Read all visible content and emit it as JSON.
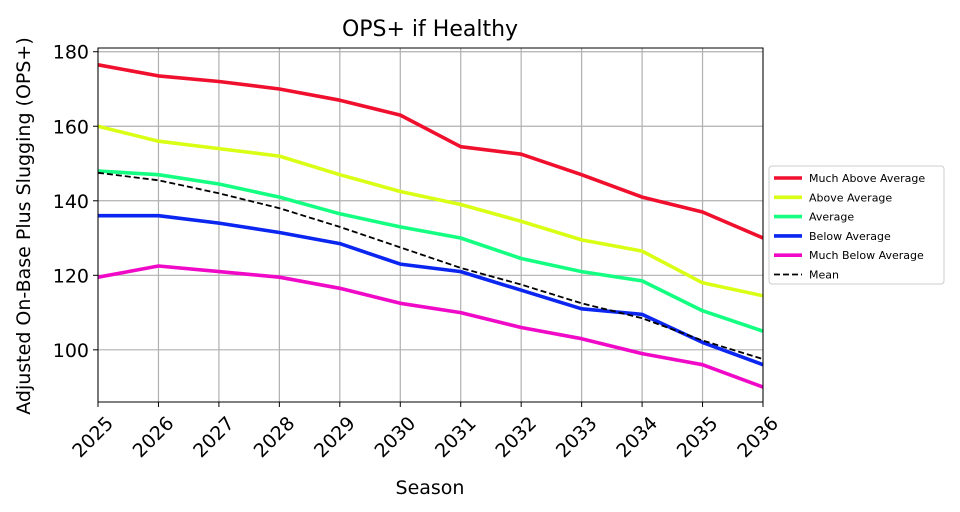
{
  "chart_data": {
    "type": "line",
    "title": "OPS+ if Healthy",
    "xlabel": "Season",
    "ylabel": "Adjusted On-Base Plus Slugging (OPS+)",
    "x": [
      2025,
      2026,
      2027,
      2028,
      2029,
      2030,
      2031,
      2032,
      2033,
      2034,
      2035,
      2036
    ],
    "xlim": [
      2025,
      2036
    ],
    "ylim": [
      86,
      181
    ],
    "yticks": [
      100,
      120,
      140,
      160,
      180
    ],
    "grid": true,
    "legend_position": "right",
    "series": [
      {
        "name": "Much Above Average",
        "color": "#f0102e",
        "style": "solid",
        "values": [
          176.5,
          173.5,
          172,
          170,
          167,
          163,
          154.5,
          152.5,
          147,
          141,
          137,
          130
        ]
      },
      {
        "name": "Above Average",
        "color": "#d9ff14",
        "style": "solid",
        "values": [
          160,
          156,
          154,
          152,
          147,
          142.5,
          139,
          134.5,
          129.5,
          126.5,
          118,
          114.5
        ]
      },
      {
        "name": "Average",
        "color": "#14ff82",
        "style": "solid",
        "values": [
          148,
          147,
          144.5,
          141,
          136.5,
          133,
          130,
          124.5,
          121,
          118.5,
          110.5,
          105
        ]
      },
      {
        "name": "Below Average",
        "color": "#0a26f0",
        "style": "solid",
        "values": [
          136,
          136,
          134,
          131.5,
          128.5,
          123,
          121,
          116,
          111,
          109.5,
          102,
          96
        ]
      },
      {
        "name": "Much Below Average",
        "color": "#f00ac8",
        "style": "solid",
        "values": [
          119.5,
          122.5,
          121,
          119.5,
          116.5,
          112.5,
          110,
          106,
          103,
          99,
          96,
          90
        ]
      },
      {
        "name": "Mean",
        "color": "#000000",
        "style": "dashed",
        "values": [
          147.5,
          145.5,
          142,
          138,
          133,
          127.5,
          122,
          117.5,
          112.5,
          108.5,
          102.5,
          97.5
        ]
      }
    ]
  }
}
